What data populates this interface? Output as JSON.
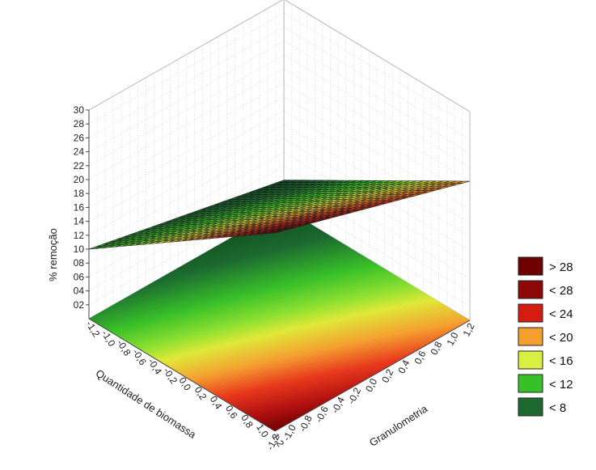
{
  "chart_data": {
    "type": "surface3d",
    "zlabel": "% remoção",
    "xlabel": "Granulometria",
    "ylabel": "Quantidade de biomassa",
    "z_ticks": [
      "02",
      "04",
      "06",
      "08",
      "10",
      "12",
      "14",
      "16",
      "18",
      "20",
      "22",
      "24",
      "26",
      "28",
      "30"
    ],
    "granulometria_ticks": [
      "-1,2",
      "-1,0",
      "-0,8",
      "-0,6",
      "-0,4",
      "-0,2",
      "0,0",
      "0,2",
      "0,4",
      "0,6",
      "0,8",
      "1,0",
      "1,2"
    ],
    "biomassa_ticks": [
      "1,2",
      "1,0",
      "0,8",
      "0,6",
      "0,4",
      "0,2",
      "0,0",
      "-0,2",
      "-0,4",
      "-0,6",
      "-0,8",
      "-1,0",
      "-1,2"
    ],
    "zlim": [
      0,
      30
    ],
    "xlim": [
      -1.2,
      1.2
    ],
    "ylim": [
      -1.2,
      1.2
    ],
    "surface_corners": [
      {
        "granulometria": -1.2,
        "biomassa": 1.2,
        "remocao": 28.5
      },
      {
        "granulometria": 1.2,
        "biomassa": 1.2,
        "remocao": 20
      },
      {
        "granulometria": 1.2,
        "biomassa": -1.2,
        "remocao": 4
      },
      {
        "granulometria": -1.2,
        "biomassa": -1.2,
        "remocao": 10
      }
    ],
    "grid": true,
    "legend_position": "right",
    "legend": [
      {
        "label": "> 28",
        "color": "#6e0000"
      },
      {
        "label": "< 28",
        "color": "#8e0808"
      },
      {
        "label": "< 24",
        "color": "#d61c10"
      },
      {
        "label": "< 20",
        "color": "#f4a030"
      },
      {
        "label": "< 16",
        "color": "#d8f040"
      },
      {
        "label": "< 12",
        "color": "#38c028"
      },
      {
        "label": "< 8",
        "color": "#1c6a30"
      }
    ]
  }
}
